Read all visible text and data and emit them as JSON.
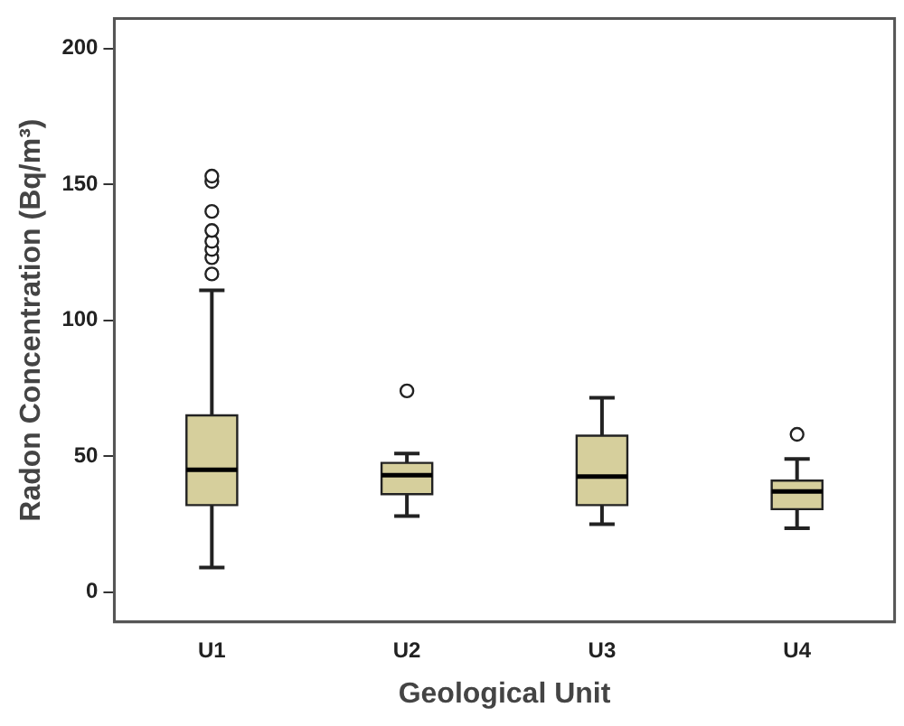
{
  "chart_data": {
    "type": "box",
    "xlabel": "Geological Unit",
    "ylabel": "Radon Concentration (Bq/m³)",
    "categories": [
      "U1",
      "U2",
      "U3",
      "U4"
    ],
    "boxes": [
      {
        "low": 9,
        "q1": 32,
        "median": 45,
        "q3": 65,
        "high": 111,
        "outliers": [
          117,
          123,
          126,
          129,
          133,
          140,
          151,
          153
        ]
      },
      {
        "low": 28,
        "q1": 36,
        "median": 43,
        "q3": 47.5,
        "high": 51,
        "outliers": [
          74
        ]
      },
      {
        "low": 25,
        "q1": 32,
        "median": 42.5,
        "q3": 57.5,
        "high": 71.5
      },
      {
        "low": 23.5,
        "q1": 30.5,
        "median": 37,
        "q3": 41,
        "high": 49,
        "outliers": [
          58
        ]
      }
    ],
    "color": "#d6cf9c",
    "ylim": [
      -11,
      211
    ],
    "yticks": [
      0,
      50,
      100,
      150,
      200
    ],
    "grid": false,
    "legend": false
  }
}
